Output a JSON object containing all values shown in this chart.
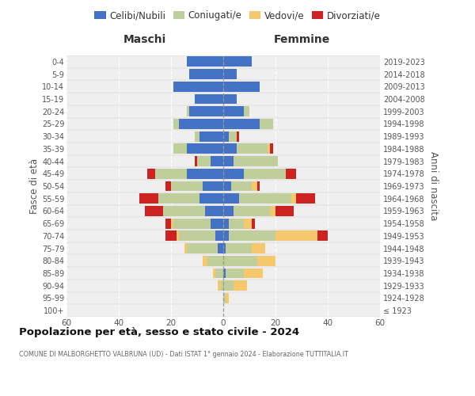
{
  "age_groups": [
    "100+",
    "95-99",
    "90-94",
    "85-89",
    "80-84",
    "75-79",
    "70-74",
    "65-69",
    "60-64",
    "55-59",
    "50-54",
    "45-49",
    "40-44",
    "35-39",
    "30-34",
    "25-29",
    "20-24",
    "15-19",
    "10-14",
    "5-9",
    "0-4"
  ],
  "birth_years": [
    "≤ 1923",
    "1924-1928",
    "1929-1933",
    "1934-1938",
    "1939-1943",
    "1944-1948",
    "1949-1953",
    "1954-1958",
    "1959-1963",
    "1964-1968",
    "1969-1973",
    "1974-1978",
    "1979-1983",
    "1984-1988",
    "1989-1993",
    "1994-1998",
    "1999-2003",
    "2004-2008",
    "2009-2013",
    "2014-2018",
    "2019-2023"
  ],
  "males": {
    "celibi": [
      0,
      0,
      0,
      0,
      0,
      2,
      3,
      5,
      7,
      9,
      8,
      14,
      5,
      14,
      9,
      17,
      13,
      11,
      19,
      13,
      14
    ],
    "coniugati": [
      0,
      0,
      1,
      3,
      6,
      12,
      14,
      14,
      16,
      16,
      12,
      12,
      5,
      5,
      2,
      2,
      1,
      0,
      0,
      0,
      0
    ],
    "vedovi": [
      0,
      0,
      1,
      1,
      2,
      1,
      1,
      1,
      0,
      0,
      0,
      0,
      0,
      0,
      0,
      0,
      0,
      0,
      0,
      0,
      0
    ],
    "divorziati": [
      0,
      0,
      0,
      0,
      0,
      0,
      4,
      2,
      7,
      7,
      2,
      3,
      1,
      0,
      0,
      0,
      0,
      0,
      0,
      0,
      0
    ]
  },
  "females": {
    "nubili": [
      0,
      0,
      0,
      1,
      0,
      1,
      2,
      2,
      4,
      6,
      3,
      8,
      4,
      5,
      2,
      14,
      8,
      5,
      14,
      5,
      11
    ],
    "coniugate": [
      0,
      1,
      4,
      7,
      13,
      10,
      18,
      6,
      14,
      20,
      8,
      16,
      17,
      12,
      3,
      5,
      2,
      0,
      0,
      0,
      0
    ],
    "vedove": [
      0,
      1,
      5,
      7,
      7,
      5,
      16,
      3,
      2,
      2,
      2,
      0,
      0,
      1,
      0,
      0,
      0,
      0,
      0,
      0,
      0
    ],
    "divorziate": [
      0,
      0,
      0,
      0,
      0,
      0,
      4,
      1,
      7,
      7,
      1,
      4,
      0,
      1,
      1,
      0,
      0,
      0,
      0,
      0,
      0
    ]
  },
  "colors": {
    "celibi": "#4472C4",
    "coniugati": "#BFCE9B",
    "vedovi": "#F5C86E",
    "divorziati": "#CC2222"
  },
  "xlim": 60,
  "title": "Popolazione per età, sesso e stato civile - 2024",
  "subtitle": "COMUNE DI MALBORGHETTO VALBRUNA (UD) - Dati ISTAT 1° gennaio 2024 - Elaborazione TUTTITALIA.IT",
  "ylabel_left": "Fasce di età",
  "ylabel_right": "Anni di nascita",
  "label_maschi": "Maschi",
  "label_femmine": "Femmine",
  "legend_labels": [
    "Celibi/Nubili",
    "Coniugati/e",
    "Vedovi/e",
    "Divorziati/e"
  ],
  "bg_color": "#efefef"
}
